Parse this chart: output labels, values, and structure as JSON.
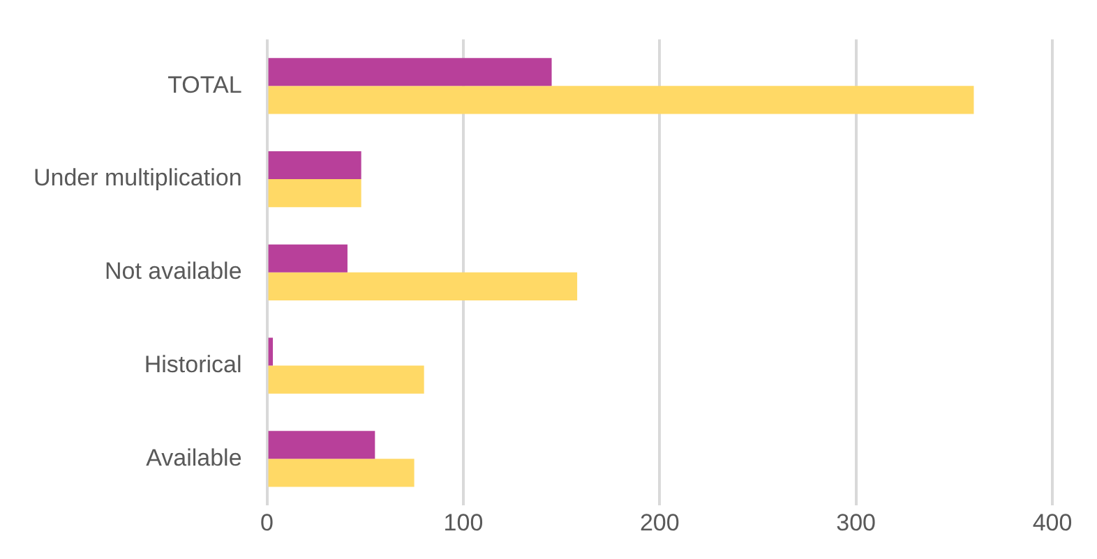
{
  "chart_data": {
    "type": "bar",
    "orientation": "horizontal",
    "categories": [
      "TOTAL",
      "Under multiplication",
      "Not available",
      "Historical",
      "Available"
    ],
    "series": [
      {
        "color": "#b8409a",
        "values": [
          145,
          48,
          41,
          3,
          55
        ]
      },
      {
        "color": "#ffd966",
        "values": [
          360,
          48,
          158,
          80,
          75
        ]
      }
    ],
    "xlim": [
      0,
      400
    ],
    "xticks": [
      0,
      100,
      200,
      300,
      400
    ],
    "grid": "x",
    "legend": false
  }
}
